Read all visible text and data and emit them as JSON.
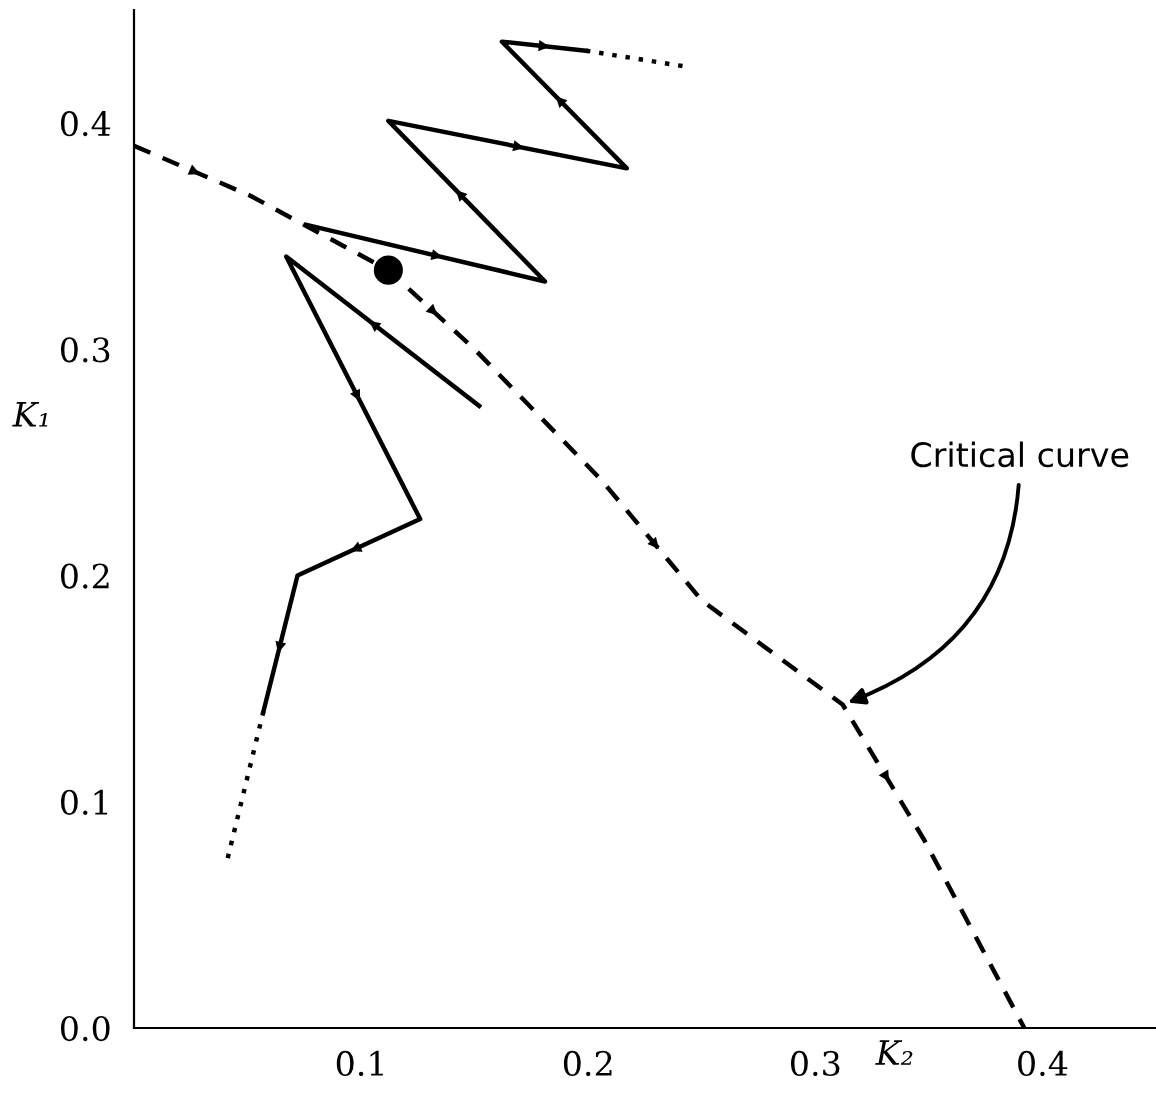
{
  "chart_data": {
    "type": "line",
    "xlabel": "K₂",
    "ylabel": "K₁",
    "xlim": [
      0,
      0.45
    ],
    "ylim": [
      0,
      0.45
    ],
    "xticks": [
      0.1,
      0.2,
      0.3,
      0.4
    ],
    "yticks": [
      {
        "value": 0,
        "label": "0.0"
      },
      0.1,
      0.2,
      0.3,
      0.4
    ],
    "grid": false,
    "series": [
      {
        "color": "#000000",
        "line_style": "dashed",
        "x": [
          0,
          0.051,
          0.112,
          0.15,
          0.206,
          0.25,
          0.312,
          0.348,
          0.392
        ],
        "values": [
          0.39,
          0.368,
          0.335,
          0.3,
          0.242,
          0.189,
          0.143,
          0.083,
          0
        ]
      },
      {
        "color": "#000000",
        "line_style": "solid",
        "x": [
          0.076,
          0.181,
          0.112,
          0.217,
          0.162,
          0.199
        ],
        "values": [
          0.355,
          0.33,
          0.401,
          0.38,
          0.436,
          0.432
        ]
      },
      {
        "color": "#000000",
        "line_style": "dotted",
        "x": [
          0.199,
          0.243
        ],
        "values": [
          0.432,
          0.425
        ]
      },
      {
        "color": "#000000",
        "line_style": "solid",
        "x": [
          0.152,
          0.067,
          0.126,
          0.072,
          0.057
        ],
        "values": [
          0.275,
          0.341,
          0.225,
          0.2,
          0.14
        ]
      },
      {
        "color": "#000000",
        "line_style": "dotted",
        "x": [
          0.057,
          0.041
        ],
        "values": [
          0.14,
          0.074
        ]
      },
      {
        "type": "scatter",
        "color": "#000000",
        "marker": "circle",
        "x": [
          0.112
        ],
        "values": [
          0.335
        ]
      }
    ],
    "annotations": [
      {
        "text": "Critical curve",
        "x": 0.312,
        "y": 0.143
      }
    ]
  }
}
